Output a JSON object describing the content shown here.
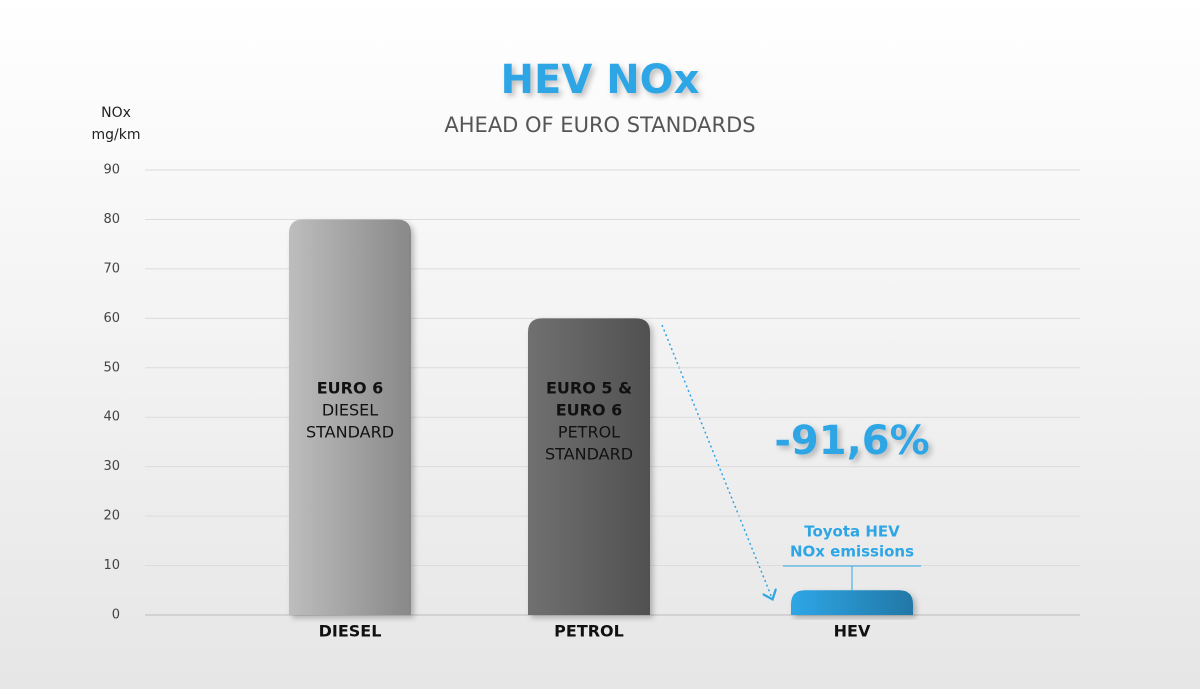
{
  "chart_data": {
    "type": "bar",
    "title": "HEV NOx",
    "subtitle": "AHEAD OF EURO STANDARDS",
    "y_label": [
      "NOx",
      "mg/km"
    ],
    "categories": [
      "DIESEL",
      "PETROL",
      "HEV"
    ],
    "values": [
      80,
      60,
      5
    ],
    "colors": [
      "#bdbdbd",
      "#707070",
      "#2ea6e6"
    ],
    "bar_labels": [
      [
        {
          "text": "EURO 6",
          "bold": true
        },
        {
          "text": "DIESEL",
          "bold": false
        },
        {
          "text": "STANDARD",
          "bold": false
        }
      ],
      [
        {
          "text": "EURO 5 &",
          "bold": true
        },
        {
          "text": "EURO 6",
          "bold": true
        },
        {
          "text": "PETROL",
          "bold": false
        },
        {
          "text": "STANDARD",
          "bold": false
        }
      ],
      null
    ],
    "annotation": "-91,6%",
    "callout": [
      "Toyota HEV",
      "NOx emissions"
    ],
    "ylim": [
      0,
      90
    ],
    "yticks": [
      0,
      10,
      20,
      30,
      40,
      50,
      60,
      70,
      80,
      90
    ],
    "grid": true
  }
}
